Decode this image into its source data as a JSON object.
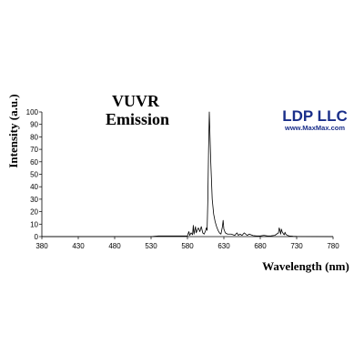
{
  "colors": {
    "line": "#000000",
    "logo_primary": "#1a2f8a"
  },
  "logo": {
    "name": "LDP LLC",
    "url": "www.MaxMax.com"
  },
  "chart_data": {
    "type": "line",
    "title": [
      "VUVR",
      "Emission"
    ],
    "xlabel": "Wavelength (nm)",
    "ylabel": "Intensity (a.u.)",
    "xlim": [
      380,
      780
    ],
    "ylim": [
      0,
      100
    ],
    "xticks": [
      380,
      430,
      480,
      530,
      580,
      630,
      680,
      730,
      780
    ],
    "yticks": [
      0,
      10,
      20,
      30,
      40,
      50,
      60,
      70,
      80,
      90,
      100
    ],
    "grid": false,
    "legend": "none",
    "series": [
      {
        "x": [
          380,
          530,
          540,
          575,
          580,
          581,
          582,
          583,
          585,
          587,
          588,
          589,
          590,
          591,
          592,
          594,
          595,
          597,
          599,
          601,
          603,
          605,
          606,
          607,
          608,
          609,
          610,
          611,
          612,
          614,
          616,
          618,
          620,
          622,
          624,
          626,
          627,
          628,
          629,
          630,
          632,
          635,
          640,
          645,
          648,
          650,
          652,
          655,
          658,
          662,
          665,
          670,
          675,
          680,
          685,
          690,
          695,
          700,
          705,
          706,
          707,
          708,
          709,
          710,
          711,
          712,
          713,
          714,
          715,
          716,
          718,
          720,
          725,
          730,
          780
        ],
        "values": [
          0,
          0,
          0.5,
          0.5,
          0.6,
          2.5,
          4,
          1,
          3,
          1.5,
          9,
          2,
          5,
          8,
          3,
          6,
          7,
          4,
          8,
          3,
          2,
          5,
          7,
          5,
          30,
          70,
          100,
          80,
          60,
          30,
          18,
          12,
          8,
          5,
          3,
          2,
          5,
          8,
          13,
          6,
          3,
          2,
          2,
          1,
          3,
          1,
          2,
          1,
          3,
          1,
          2,
          0.8,
          0.5,
          0.5,
          1,
          0.5,
          0.6,
          1,
          3,
          7,
          5,
          2,
          6,
          4,
          3,
          2,
          1.5,
          3.5,
          2,
          1.5,
          0.8,
          0.5,
          0.3,
          0.2,
          0
        ]
      }
    ]
  }
}
